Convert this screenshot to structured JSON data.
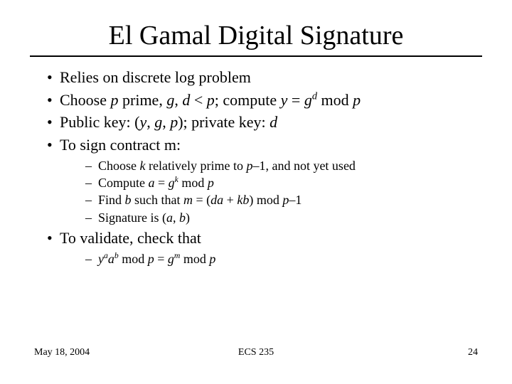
{
  "title": "El Gamal Digital Signature",
  "bullets": {
    "b0": "Relies on discrete log problem",
    "b4": "To validate, check that"
  },
  "footer": {
    "date": "May 18, 2004",
    "course": "ECS 235",
    "page": "24"
  },
  "style": {
    "title_fontsize": 38,
    "body_fontsize": 22,
    "sub_fontsize": 18,
    "footer_fontsize": 14,
    "text_color": "#000000",
    "background_color": "#ffffff",
    "rule_color": "#000000",
    "font_family": "Times New Roman"
  }
}
